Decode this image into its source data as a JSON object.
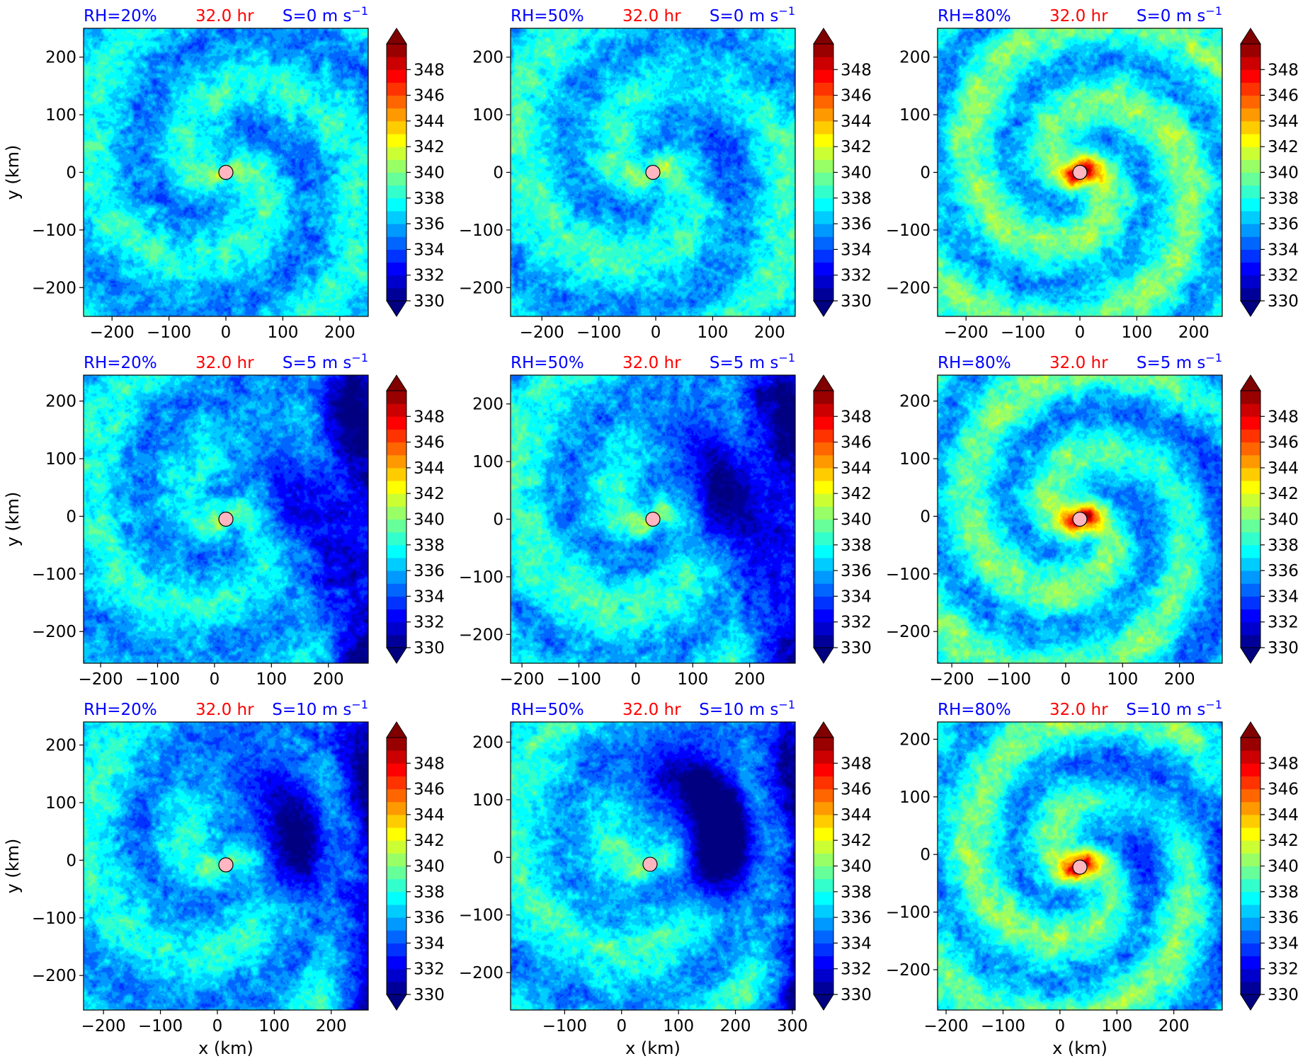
{
  "chart_data": {
    "type": "heatmap",
    "grid": false,
    "colorbar": {
      "ticks": [
        330,
        332,
        334,
        336,
        338,
        340,
        342,
        344,
        346,
        348
      ],
      "vmin": 330,
      "vmax": 350,
      "levels": 20,
      "extend": "both",
      "colormap": "jet"
    },
    "panels": [
      {
        "row": 0,
        "col": 0,
        "rh_label": "RH=20%",
        "time_label": "32.0 hr",
        "shear_label": "S=0 m s",
        "shear_exp": "−1",
        "rh": 20,
        "shear": 0,
        "xlim": [
          -250,
          250
        ],
        "ylim": [
          -250,
          250
        ],
        "xticks": [
          -200,
          -100,
          0,
          100,
          200
        ],
        "yticks": [
          -200,
          -100,
          0,
          100,
          200
        ],
        "xlabel": "",
        "ylabel": "y (km)",
        "center": [
          0,
          0
        ]
      },
      {
        "row": 0,
        "col": 1,
        "rh_label": "RH=50%",
        "time_label": "32.0 hr",
        "shear_label": "S=0 m s",
        "shear_exp": "−1",
        "rh": 50,
        "shear": 0,
        "xlim": [
          -255,
          245
        ],
        "ylim": [
          -250,
          250
        ],
        "xticks": [
          -200,
          -100,
          0,
          100,
          200
        ],
        "yticks": [
          -200,
          -100,
          0,
          100,
          200
        ],
        "xlabel": "",
        "ylabel": "",
        "center": [
          -5,
          0
        ]
      },
      {
        "row": 0,
        "col": 2,
        "rh_label": "RH=80%",
        "time_label": "32.0 hr",
        "shear_label": "S=0 m s",
        "shear_exp": "−1",
        "rh": 80,
        "shear": 0,
        "xlim": [
          -250,
          250
        ],
        "ylim": [
          -250,
          250
        ],
        "xticks": [
          -200,
          -100,
          0,
          100,
          200
        ],
        "yticks": [
          -200,
          -100,
          0,
          100,
          200
        ],
        "xlabel": "",
        "ylabel": "",
        "center": [
          0,
          0
        ]
      },
      {
        "row": 1,
        "col": 0,
        "rh_label": "RH=20%",
        "time_label": "32.0 hr",
        "shear_label": "S=5 m s",
        "shear_exp": "−1",
        "rh": 20,
        "shear": 5,
        "xlim": [
          -230,
          270
        ],
        "ylim": [
          -255,
          245
        ],
        "xticks": [
          -200,
          -100,
          0,
          100,
          200
        ],
        "yticks": [
          -200,
          -100,
          0,
          100,
          200
        ],
        "xlabel": "",
        "ylabel": "y (km)",
        "center": [
          20,
          -5
        ]
      },
      {
        "row": 1,
        "col": 1,
        "rh_label": "RH=50%",
        "time_label": "32.0 hr",
        "shear_label": "S=5 m s",
        "shear_exp": "−1",
        "rh": 50,
        "shear": 5,
        "xlim": [
          -220,
          280
        ],
        "ylim": [
          -250,
          250
        ],
        "xticks": [
          -200,
          -100,
          0,
          100,
          200
        ],
        "yticks": [
          -200,
          -100,
          0,
          100,
          200
        ],
        "xlabel": "",
        "ylabel": "",
        "center": [
          30,
          0
        ]
      },
      {
        "row": 1,
        "col": 2,
        "rh_label": "RH=80%",
        "time_label": "32.0 hr",
        "shear_label": "S=5 m s",
        "shear_exp": "−1",
        "rh": 80,
        "shear": 5,
        "xlim": [
          -225,
          275
        ],
        "ylim": [
          -255,
          245
        ],
        "xticks": [
          -200,
          -100,
          0,
          100,
          200
        ],
        "yticks": [
          -200,
          -100,
          0,
          100,
          200
        ],
        "xlabel": "",
        "ylabel": "",
        "center": [
          25,
          -5
        ]
      },
      {
        "row": 2,
        "col": 0,
        "rh_label": "RH=20%",
        "time_label": "32.0 hr",
        "shear_label": "S=10 m s",
        "shear_exp": "−1",
        "rh": 20,
        "shear": 10,
        "xlim": [
          -235,
          265
        ],
        "ylim": [
          -260,
          240
        ],
        "xticks": [
          -200,
          -100,
          0,
          100,
          200
        ],
        "yticks": [
          -200,
          -100,
          0,
          100,
          200
        ],
        "xlabel": "x (km)",
        "ylabel": "y (km)",
        "center": [
          15,
          -8
        ]
      },
      {
        "row": 2,
        "col": 1,
        "rh_label": "RH=50%",
        "time_label": "32.0 hr",
        "shear_label": "S=10 m s",
        "shear_exp": "−1",
        "rh": 50,
        "shear": 10,
        "xlim": [
          -195,
          305
        ],
        "ylim": [
          -265,
          235
        ],
        "xticks": [
          -100,
          0,
          100,
          200,
          300
        ],
        "yticks": [
          -200,
          -100,
          0,
          100,
          200
        ],
        "xlabel": "x (km)",
        "ylabel": "",
        "center": [
          50,
          -12
        ]
      },
      {
        "row": 2,
        "col": 2,
        "rh_label": "RH=80%",
        "time_label": "32.0 hr",
        "shear_label": "S=10 m s",
        "shear_exp": "−1",
        "rh": 80,
        "shear": 10,
        "xlim": [
          -215,
          285
        ],
        "ylim": [
          -270,
          230
        ],
        "xticks": [
          -200,
          -100,
          0,
          100,
          200
        ],
        "yticks": [
          -200,
          -100,
          0,
          100,
          200
        ],
        "xlabel": "x (km)",
        "ylabel": "",
        "center": [
          35,
          -22
        ]
      }
    ]
  },
  "colors": {
    "rh_label": "#0000ff",
    "time_label": "#ff0000",
    "shear_label": "#0000ff",
    "center_marker_fill": "#ffb6c1",
    "center_marker_edge": "#000000"
  }
}
